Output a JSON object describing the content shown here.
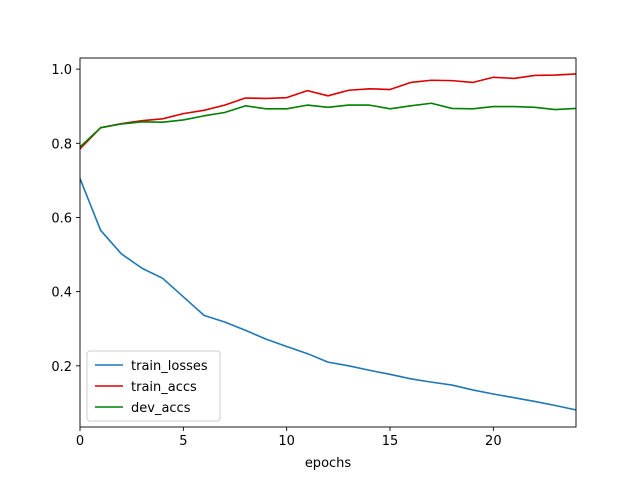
{
  "chart_data": {
    "type": "line",
    "title": "",
    "xlabel": "epochs",
    "ylabel": "",
    "xlim": [
      0,
      24
    ],
    "ylim": [
      0.035,
      1.03
    ],
    "xticks": [
      0,
      5,
      10,
      15,
      20
    ],
    "yticks": [
      0.2,
      0.4,
      0.6,
      0.8,
      1.0
    ],
    "xtick_labels": [
      "0",
      "5",
      "10",
      "15",
      "20"
    ],
    "ytick_labels": [
      "0.2",
      "0.4",
      "0.6",
      "0.8",
      "1.0"
    ],
    "grid": false,
    "legend_position": "lower-left",
    "x": [
      0,
      1,
      2,
      3,
      4,
      5,
      6,
      7,
      8,
      9,
      10,
      11,
      12,
      13,
      14,
      15,
      16,
      17,
      18,
      19,
      20,
      21,
      22,
      23,
      24
    ],
    "series": [
      {
        "name": "train_losses",
        "color": "#1f77b4",
        "values": [
          0.705,
          0.565,
          0.502,
          0.463,
          0.436,
          0.386,
          0.336,
          0.318,
          0.296,
          0.272,
          0.252,
          0.233,
          0.21,
          0.2,
          0.188,
          0.177,
          0.165,
          0.156,
          0.148,
          0.135,
          0.124,
          0.114,
          0.104,
          0.093,
          0.081
        ]
      },
      {
        "name": "train_accs",
        "color": "#dd0000",
        "values": [
          0.785,
          0.842,
          0.853,
          0.861,
          0.866,
          0.88,
          0.889,
          0.903,
          0.922,
          0.921,
          0.923,
          0.942,
          0.928,
          0.943,
          0.947,
          0.945,
          0.964,
          0.97,
          0.969,
          0.964,
          0.978,
          0.975,
          0.983,
          0.984,
          0.987
        ]
      },
      {
        "name": "dev_accs",
        "color": "#008000",
        "values": [
          0.79,
          0.842,
          0.852,
          0.858,
          0.857,
          0.863,
          0.874,
          0.883,
          0.901,
          0.893,
          0.893,
          0.903,
          0.897,
          0.903,
          0.903,
          0.893,
          0.901,
          0.908,
          0.894,
          0.893,
          0.899,
          0.899,
          0.897,
          0.891,
          0.894
        ]
      }
    ]
  }
}
